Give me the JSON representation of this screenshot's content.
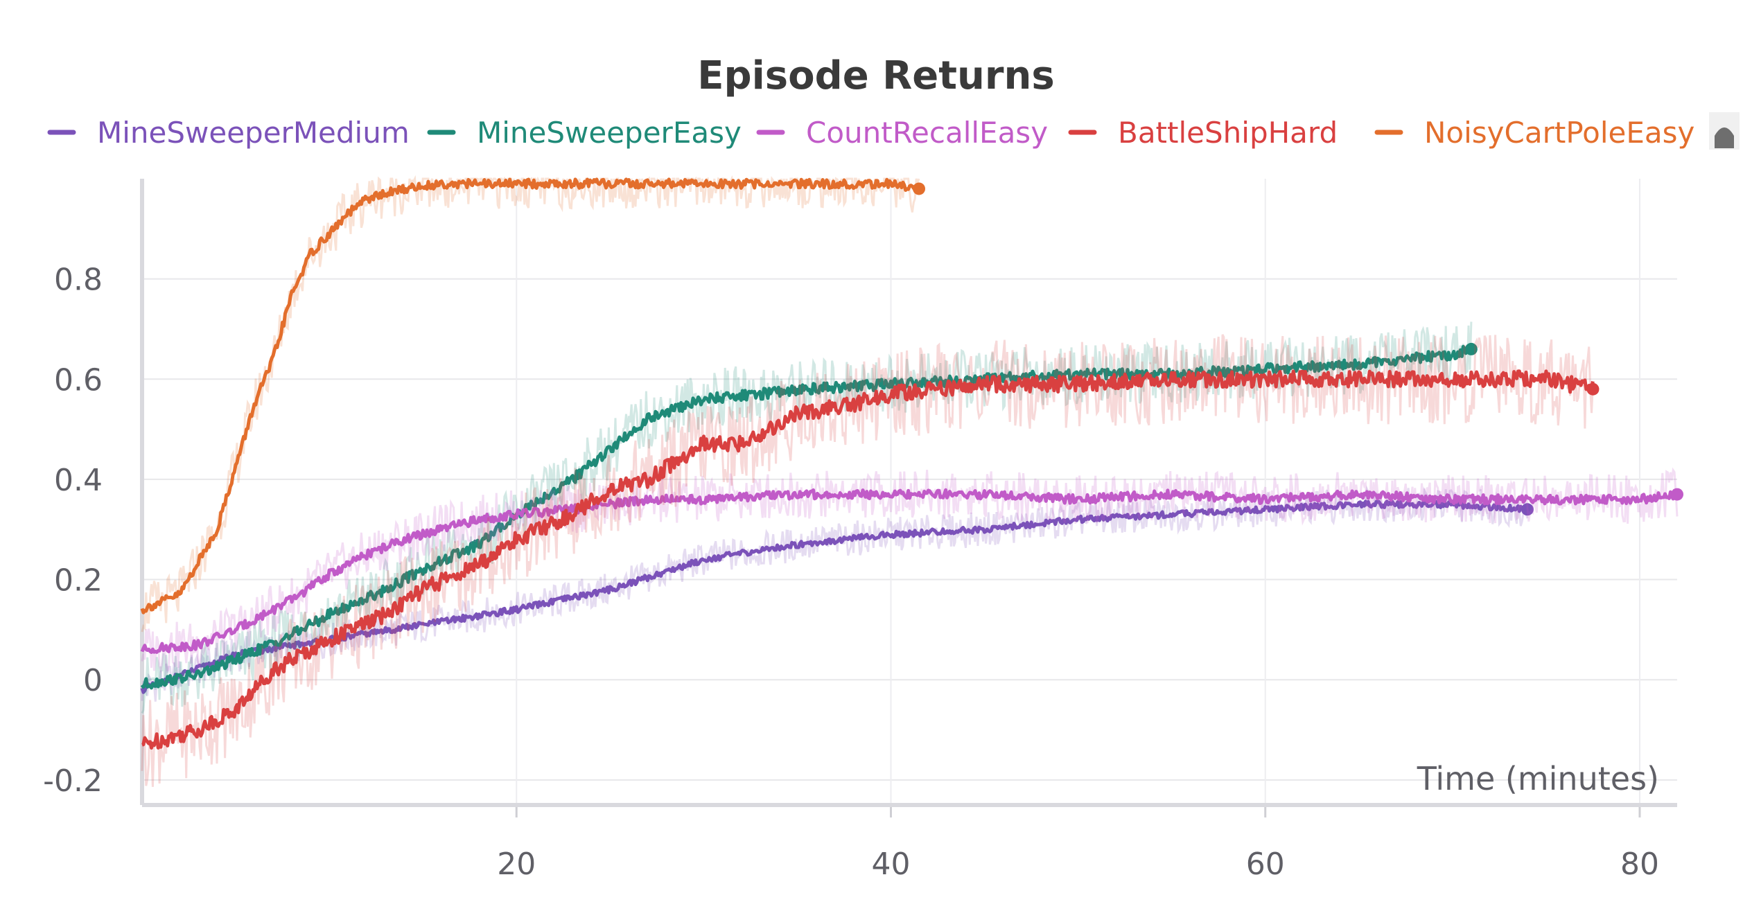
{
  "chart_data": {
    "type": "line",
    "title": "Episode Returns",
    "xlabel": "Time (minutes)",
    "ylabel": "",
    "xlim": [
      0,
      82
    ],
    "ylim": [
      -0.25,
      1.0
    ],
    "x_ticks": [
      20,
      40,
      60,
      80
    ],
    "y_ticks": [
      {
        "value": -0.2,
        "label": "-0.2"
      },
      {
        "value": 0,
        "label": "0"
      },
      {
        "value": 0.2,
        "label": "0.2"
      },
      {
        "value": 0.4,
        "label": "0.4"
      },
      {
        "value": 0.6,
        "label": "0.6"
      },
      {
        "value": 0.8,
        "label": "0.8"
      }
    ],
    "grid": true,
    "legend_position": "top",
    "series": [
      {
        "name": "MineSweeperMedium",
        "color": "#7b52b9",
        "x": [
          0,
          5,
          10,
          15,
          20,
          25,
          30,
          35,
          40,
          45,
          50,
          55,
          60,
          65,
          70,
          74
        ],
        "y": [
          -0.02,
          0.05,
          0.08,
          0.11,
          0.14,
          0.18,
          0.24,
          0.27,
          0.29,
          0.3,
          0.32,
          0.33,
          0.34,
          0.35,
          0.35,
          0.34
        ]
      },
      {
        "name": "MineSweeperEasy",
        "color": "#1f8a78",
        "x": [
          0,
          3,
          5,
          8,
          10,
          13,
          15,
          18,
          20,
          23,
          25,
          27,
          30,
          33,
          35,
          40,
          45,
          50,
          55,
          60,
          65,
          70,
          71
        ],
        "y": [
          -0.01,
          0.01,
          0.04,
          0.09,
          0.13,
          0.18,
          0.22,
          0.27,
          0.33,
          0.4,
          0.46,
          0.52,
          0.56,
          0.57,
          0.58,
          0.59,
          0.6,
          0.61,
          0.61,
          0.62,
          0.63,
          0.65,
          0.66
        ]
      },
      {
        "name": "CountRecallEasy",
        "color": "#c15bc8",
        "x": [
          0,
          3,
          5,
          8,
          10,
          12,
          14,
          16,
          18,
          20,
          23,
          25,
          27,
          30,
          35,
          40,
          45,
          50,
          55,
          60,
          65,
          70,
          75,
          80,
          82
        ],
        "y": [
          0.06,
          0.07,
          0.1,
          0.16,
          0.21,
          0.25,
          0.28,
          0.3,
          0.32,
          0.33,
          0.34,
          0.35,
          0.36,
          0.36,
          0.37,
          0.37,
          0.37,
          0.36,
          0.37,
          0.36,
          0.37,
          0.36,
          0.36,
          0.36,
          0.37
        ]
      },
      {
        "name": "BattleShipHard",
        "color": "#d94040",
        "x": [
          0,
          3,
          5,
          7,
          10,
          13,
          15,
          18,
          20,
          23,
          25,
          27,
          30,
          32,
          35,
          38,
          40,
          45,
          50,
          55,
          60,
          65,
          70,
          75,
          77.5
        ],
        "y": [
          -0.13,
          -0.1,
          -0.06,
          0.02,
          0.08,
          0.13,
          0.18,
          0.23,
          0.28,
          0.33,
          0.38,
          0.4,
          0.47,
          0.47,
          0.53,
          0.55,
          0.57,
          0.59,
          0.59,
          0.6,
          0.6,
          0.6,
          0.6,
          0.6,
          0.58
        ]
      },
      {
        "name": "NoisyCartPoleEasy",
        "color": "#e36e2c",
        "x": [
          0,
          2,
          4,
          6,
          7,
          8,
          9,
          10,
          11,
          12,
          14,
          16,
          20,
          25,
          30,
          35,
          40,
          41.5
        ],
        "y": [
          0.14,
          0.17,
          0.3,
          0.55,
          0.64,
          0.77,
          0.85,
          0.89,
          0.93,
          0.96,
          0.98,
          0.99,
          0.99,
          0.99,
          0.99,
          0.99,
          0.99,
          0.98
        ]
      }
    ]
  }
}
